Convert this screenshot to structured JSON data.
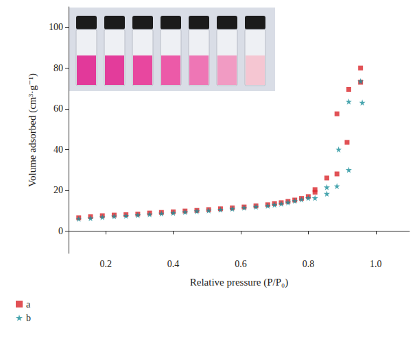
{
  "chart_data": {
    "type": "scatter",
    "x_label": "Relative pressure (P/P₀)",
    "y_label": "Volume adsorbed (cm³·g⁻¹)",
    "xlim": [
      0.09,
      1.1
    ],
    "xticks": [
      0.2,
      0.4,
      0.6,
      0.8,
      {
        "value": 1.0,
        "label": "1.0"
      }
    ],
    "ylim": [
      -11,
      110
    ],
    "yticks": [
      0,
      20,
      40,
      60,
      80,
      100
    ],
    "grid": false,
    "legend": "bottom left",
    "series": [
      {
        "name": "a",
        "color": "#d9262b",
        "marker": "square",
        "x": [
          0.12,
          0.155,
          0.19,
          0.225,
          0.26,
          0.295,
          0.33,
          0.365,
          0.4,
          0.435,
          0.47,
          0.505,
          0.54,
          0.575,
          0.61,
          0.645,
          0.68,
          0.7,
          0.72,
          0.74,
          0.76,
          0.78,
          0.8,
          0.82,
          0.82,
          0.855,
          0.885,
          0.885,
          0.915,
          0.92,
          0.955,
          0.955
        ],
        "values": [
          6.5,
          7,
          7.5,
          7.8,
          8,
          8.3,
          8.8,
          9.1,
          9.4,
          9.8,
          10.1,
          10.5,
          10.9,
          11.3,
          11.8,
          12.3,
          12.9,
          13.4,
          13.9,
          14.5,
          15.2,
          16,
          16.9,
          19,
          20.3,
          26,
          28,
          57.5,
          43.5,
          69.5,
          80,
          73
        ]
      },
      {
        "name": "b",
        "color": "#1a8f9a",
        "marker": "star",
        "x": [
          0.12,
          0.155,
          0.19,
          0.225,
          0.26,
          0.295,
          0.33,
          0.365,
          0.4,
          0.435,
          0.47,
          0.505,
          0.54,
          0.575,
          0.61,
          0.645,
          0.68,
          0.7,
          0.72,
          0.74,
          0.76,
          0.78,
          0.8,
          0.82,
          0.855,
          0.855,
          0.885,
          0.89,
          0.92,
          0.92,
          0.955,
          0.96
        ],
        "values": [
          6,
          6.3,
          6.8,
          7.2,
          7.5,
          7.8,
          8.2,
          8.6,
          8.9,
          9.3,
          9.7,
          10.1,
          10.5,
          10.9,
          11.4,
          11.9,
          12.4,
          12.9,
          13.4,
          14,
          14.8,
          15.5,
          16.2,
          16.2,
          18.3,
          21.5,
          22,
          40,
          30,
          63.5,
          73.5,
          63
        ]
      }
    ]
  }
}
